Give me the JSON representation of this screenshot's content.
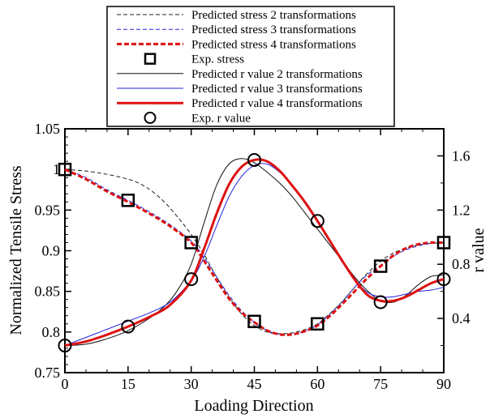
{
  "chart_data": {
    "type": "line",
    "xlabel": "Loading Direction",
    "ylabel": "Normalized Tensile Stress",
    "y2label": "r value",
    "xlim": [
      0,
      90
    ],
    "ylim": [
      0.75,
      1.05
    ],
    "y2lim": [
      0.0,
      1.8
    ],
    "x_ticks": [
      0,
      15,
      30,
      45,
      60,
      75,
      90
    ],
    "x_tick_labels": [
      "0",
      "15",
      "30",
      "45",
      "60",
      "75",
      "90"
    ],
    "y_ticks": [
      0.75,
      0.8,
      0.85,
      0.9,
      0.95,
      1.0,
      1.05
    ],
    "y_tick_labels": [
      "0.75",
      "0.8",
      "0.85",
      "0.9",
      "0.95",
      "1",
      "1.05"
    ],
    "y2_ticks": [
      0.4,
      0.8,
      1.2,
      1.6
    ],
    "y2_tick_labels": [
      "0.4",
      "0.8",
      "1.2",
      "1.6"
    ],
    "legend_position": "top-center",
    "series": [
      {
        "name": "Predicted stress 2 transformations",
        "axis": "left",
        "color": "#222222",
        "style": "dashed",
        "width": 1,
        "x": [
          0,
          5,
          10,
          15,
          18,
          21,
          24,
          27,
          30,
          33,
          36,
          39,
          42,
          45,
          48,
          51,
          54,
          57,
          60,
          63,
          66,
          69,
          72,
          75,
          78,
          81,
          84,
          87,
          90
        ],
        "y": [
          1.0,
          0.998,
          0.994,
          0.988,
          0.982,
          0.972,
          0.958,
          0.94,
          0.92,
          0.896,
          0.868,
          0.843,
          0.822,
          0.808,
          0.8,
          0.798,
          0.799,
          0.803,
          0.81,
          0.823,
          0.838,
          0.856,
          0.873,
          0.887,
          0.897,
          0.903,
          0.907,
          0.909,
          0.91
        ]
      },
      {
        "name": "Predicted stress 3 transformations",
        "axis": "left",
        "color": "#2222dd",
        "style": "dashed",
        "width": 1,
        "x": [
          0,
          5,
          10,
          15,
          20,
          25,
          30,
          33,
          36,
          39,
          42,
          45,
          48,
          51,
          54,
          57,
          60,
          63,
          66,
          69,
          72,
          75,
          78,
          81,
          84,
          87,
          90
        ],
        "y": [
          1.0,
          0.99,
          0.975,
          0.962,
          0.948,
          0.932,
          0.912,
          0.892,
          0.868,
          0.845,
          0.826,
          0.812,
          0.802,
          0.797,
          0.797,
          0.801,
          0.809,
          0.822,
          0.838,
          0.856,
          0.871,
          0.882,
          0.893,
          0.901,
          0.906,
          0.909,
          0.91
        ]
      },
      {
        "name": "Predicted stress 4 transformations",
        "axis": "left",
        "color": "#dd1111",
        "style": "dashed",
        "width": 3,
        "x": [
          0,
          5,
          10,
          15,
          20,
          25,
          30,
          33,
          36,
          39,
          42,
          45,
          48,
          51,
          54,
          57,
          60,
          63,
          66,
          69,
          72,
          75,
          78,
          81,
          84,
          87,
          90
        ],
        "y": [
          1.0,
          0.988,
          0.973,
          0.96,
          0.946,
          0.93,
          0.91,
          0.888,
          0.864,
          0.841,
          0.824,
          0.812,
          0.802,
          0.797,
          0.797,
          0.801,
          0.808,
          0.82,
          0.835,
          0.851,
          0.867,
          0.881,
          0.894,
          0.903,
          0.908,
          0.91,
          0.91
        ]
      },
      {
        "name": "Exp. stress",
        "axis": "left",
        "color": "#000000",
        "style": "marker-square",
        "x": [
          0,
          15,
          30,
          45,
          60,
          75,
          90
        ],
        "y": [
          1.0,
          0.962,
          0.91,
          0.813,
          0.81,
          0.881,
          0.91
        ]
      },
      {
        "name": "Predicted r value 2 transformations",
        "axis": "right",
        "color": "#111111",
        "style": "solid",
        "width": 1,
        "x": [
          0,
          5,
          10,
          15,
          20,
          24,
          27,
          30,
          33,
          36,
          39,
          42,
          45,
          48,
          51,
          54,
          57,
          60,
          63,
          66,
          69,
          72,
          75,
          78,
          81,
          84,
          87,
          90
        ],
        "y": [
          0.2,
          0.21,
          0.25,
          0.31,
          0.4,
          0.5,
          0.62,
          0.8,
          1.1,
          1.38,
          1.54,
          1.58,
          1.55,
          1.48,
          1.4,
          1.3,
          1.18,
          1.06,
          0.94,
          0.82,
          0.7,
          0.6,
          0.53,
          0.52,
          0.57,
          0.65,
          0.71,
          0.72
        ]
      },
      {
        "name": "Predicted r value 3 transformations",
        "axis": "right",
        "color": "#2222dd",
        "style": "solid",
        "width": 1,
        "x": [
          0,
          5,
          10,
          15,
          20,
          25,
          30,
          33,
          36,
          39,
          42,
          45,
          48,
          51,
          54,
          57,
          60,
          63,
          66,
          69,
          72,
          75,
          78,
          81,
          84,
          87,
          90
        ],
        "y": [
          0.2,
          0.26,
          0.32,
          0.38,
          0.44,
          0.52,
          0.68,
          0.85,
          1.08,
          1.3,
          1.45,
          1.53,
          1.54,
          1.48,
          1.38,
          1.25,
          1.11,
          0.96,
          0.81,
          0.68,
          0.59,
          0.56,
          0.56,
          0.58,
          0.6,
          0.61,
          0.63
        ]
      },
      {
        "name": "Predicted r value 4 transformations",
        "axis": "right",
        "color": "#dd1111",
        "style": "solid",
        "width": 3,
        "x": [
          0,
          5,
          10,
          15,
          20,
          25,
          30,
          33,
          36,
          39,
          42,
          45,
          48,
          51,
          54,
          57,
          60,
          63,
          66,
          69,
          72,
          75,
          78,
          81,
          84,
          87,
          90
        ],
        "y": [
          0.2,
          0.23,
          0.28,
          0.34,
          0.41,
          0.5,
          0.68,
          0.91,
          1.17,
          1.39,
          1.52,
          1.57,
          1.56,
          1.49,
          1.38,
          1.26,
          1.12,
          0.97,
          0.82,
          0.68,
          0.57,
          0.53,
          0.53,
          0.56,
          0.61,
          0.66,
          0.69
        ]
      },
      {
        "name": "Exp. r value",
        "axis": "right",
        "color": "#000000",
        "style": "marker-circle",
        "x": [
          0,
          15,
          30,
          45,
          60,
          75,
          90
        ],
        "y": [
          0.2,
          0.34,
          0.69,
          1.57,
          1.12,
          0.52,
          0.69
        ]
      }
    ]
  }
}
